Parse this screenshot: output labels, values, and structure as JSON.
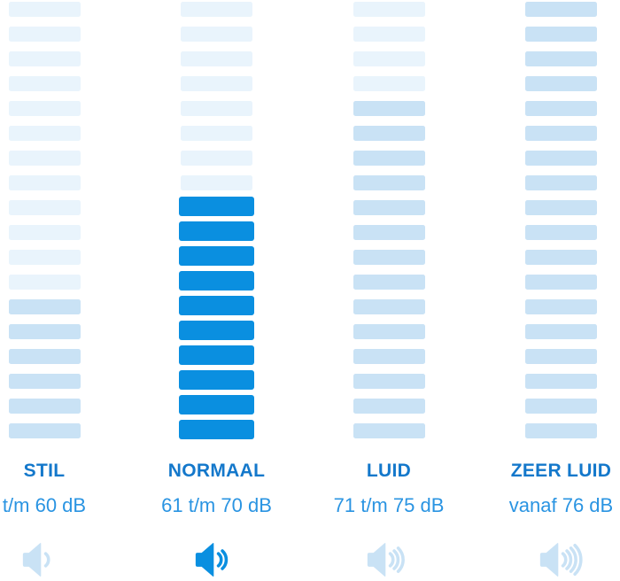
{
  "chart_data": {
    "type": "bar",
    "title": "",
    "description": "Sound level scale in decibels, vertical segmented volume meters per loudness category; NORMAAL category highlighted",
    "total_segments": 18,
    "categories": [
      {
        "label": "STIL",
        "range": "t/m 60 dB",
        "filled_segments": 6,
        "selected": false,
        "speaker_waves": 1
      },
      {
        "label": "NORMAAL",
        "range": "61 t/m 70 dB",
        "filled_segments": 10,
        "selected": true,
        "speaker_waves": 2
      },
      {
        "label": "LUID",
        "range": "71 t/m 75 dB",
        "filled_segments": 14,
        "selected": false,
        "speaker_waves": 3
      },
      {
        "label": "ZEER LUID",
        "range": "vanaf 76 dB",
        "filled_segments": 18,
        "selected": false,
        "speaker_waves": 4
      }
    ],
    "legend_position": "none",
    "grid": false,
    "colors": {
      "segment_empty": "#e9f4fc",
      "segment_filled": "#c9e2f5",
      "segment_selected": "#0a8fe0",
      "category_label": "#1478cb",
      "range_label": "#2a94e2"
    }
  }
}
